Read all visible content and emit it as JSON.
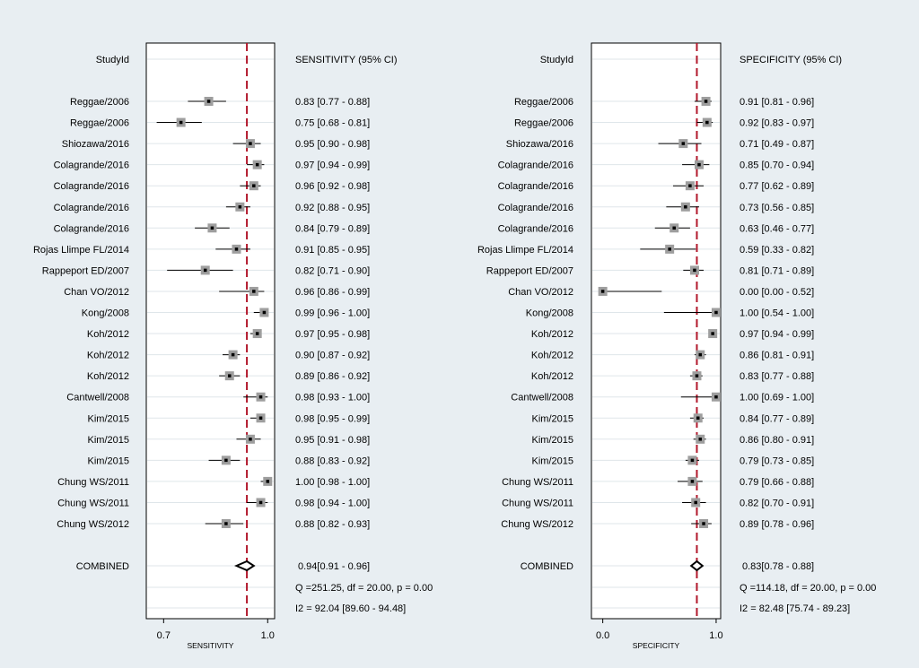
{
  "chart_data": [
    {
      "type": "forest",
      "id": "sensitivity",
      "study_header": "StudyId",
      "estimate_header": "SENSITIVITY (95% CI)",
      "xlabel": "SENSITIVITY",
      "xlim": [
        0.65,
        1.02
      ],
      "ticks": [
        {
          "value": 0.7,
          "label": "0.7"
        },
        {
          "value": 1.0,
          "label": "1.0"
        }
      ],
      "pooled_line": 0.94,
      "studies": [
        {
          "name": "Reggae/2006",
          "est": 0.83,
          "lo": 0.77,
          "hi": 0.88,
          "label": "0.83 [0.77 - 0.88]"
        },
        {
          "name": "Reggae/2006",
          "est": 0.75,
          "lo": 0.68,
          "hi": 0.81,
          "label": "0.75 [0.68 - 0.81]"
        },
        {
          "name": "Shiozawa/2016",
          "est": 0.95,
          "lo": 0.9,
          "hi": 0.98,
          "label": "0.95 [0.90 - 0.98]"
        },
        {
          "name": "Colagrande/2016",
          "est": 0.97,
          "lo": 0.94,
          "hi": 0.99,
          "label": "0.97 [0.94 - 0.99]"
        },
        {
          "name": "Colagrande/2016",
          "est": 0.96,
          "lo": 0.92,
          "hi": 0.98,
          "label": "0.96 [0.92 - 0.98]"
        },
        {
          "name": "Colagrande/2016",
          "est": 0.92,
          "lo": 0.88,
          "hi": 0.95,
          "label": "0.92 [0.88 - 0.95]"
        },
        {
          "name": "Colagrande/2016",
          "est": 0.84,
          "lo": 0.79,
          "hi": 0.89,
          "label": "0.84 [0.79 - 0.89]"
        },
        {
          "name": "Rojas Llimpe FL/2014",
          "est": 0.91,
          "lo": 0.85,
          "hi": 0.95,
          "label": "0.91 [0.85 - 0.95]"
        },
        {
          "name": "Rappeport ED/2007",
          "est": 0.82,
          "lo": 0.71,
          "hi": 0.9,
          "label": "0.82 [0.71 - 0.90]"
        },
        {
          "name": "Chan VO/2012",
          "est": 0.96,
          "lo": 0.86,
          "hi": 0.99,
          "label": "0.96 [0.86 - 0.99]"
        },
        {
          "name": "Kong/2008",
          "est": 0.99,
          "lo": 0.96,
          "hi": 1.0,
          "label": "0.99 [0.96 - 1.00]"
        },
        {
          "name": "Koh/2012",
          "est": 0.97,
          "lo": 0.95,
          "hi": 0.98,
          "label": "0.97 [0.95 - 0.98]"
        },
        {
          "name": "Koh/2012",
          "est": 0.9,
          "lo": 0.87,
          "hi": 0.92,
          "label": "0.90 [0.87 - 0.92]"
        },
        {
          "name": "Koh/2012",
          "est": 0.89,
          "lo": 0.86,
          "hi": 0.92,
          "label": "0.89 [0.86 - 0.92]"
        },
        {
          "name": "Cantwell/2008",
          "est": 0.98,
          "lo": 0.93,
          "hi": 1.0,
          "label": "0.98 [0.93 - 1.00]"
        },
        {
          "name": "Kim/2015",
          "est": 0.98,
          "lo": 0.95,
          "hi": 0.99,
          "label": "0.98 [0.95 - 0.99]"
        },
        {
          "name": "Kim/2015",
          "est": 0.95,
          "lo": 0.91,
          "hi": 0.98,
          "label": "0.95 [0.91 - 0.98]"
        },
        {
          "name": "Kim/2015",
          "est": 0.88,
          "lo": 0.83,
          "hi": 0.92,
          "label": "0.88 [0.83 - 0.92]"
        },
        {
          "name": "Chung WS/2011",
          "est": 1.0,
          "lo": 0.98,
          "hi": 1.0,
          "label": "1.00 [0.98 - 1.00]"
        },
        {
          "name": "Chung WS/2011",
          "est": 0.98,
          "lo": 0.94,
          "hi": 1.0,
          "label": "0.98 [0.94 - 1.00]"
        },
        {
          "name": "Chung WS/2012",
          "est": 0.88,
          "lo": 0.82,
          "hi": 0.93,
          "label": "0.88 [0.82 - 0.93]"
        }
      ],
      "combined": {
        "name": "COMBINED",
        "est": 0.94,
        "lo": 0.91,
        "hi": 0.96,
        "label": "0.94[0.91 - 0.96]"
      },
      "heterogeneity_q": "Q =251.25, df = 20.00, p =  0.00",
      "heterogeneity_i2": "I2 = 92.04 [89.60 - 94.48]"
    },
    {
      "type": "forest",
      "id": "specificity",
      "study_header": "StudyId",
      "estimate_header": "SPECIFICITY (95% CI)",
      "xlabel": "SPECIFICITY",
      "xlim": [
        -0.1,
        1.04
      ],
      "ticks": [
        {
          "value": 0.0,
          "label": "0.0"
        },
        {
          "value": 1.0,
          "label": "1.0"
        }
      ],
      "pooled_line": 0.83,
      "studies": [
        {
          "name": "Reggae/2006",
          "est": 0.91,
          "lo": 0.81,
          "hi": 0.96,
          "label": "0.91 [0.81 - 0.96]"
        },
        {
          "name": "Reggae/2006",
          "est": 0.92,
          "lo": 0.83,
          "hi": 0.97,
          "label": "0.92 [0.83 - 0.97]"
        },
        {
          "name": "Shiozawa/2016",
          "est": 0.71,
          "lo": 0.49,
          "hi": 0.87,
          "label": "0.71 [0.49 - 0.87]"
        },
        {
          "name": "Colagrande/2016",
          "est": 0.85,
          "lo": 0.7,
          "hi": 0.94,
          "label": "0.85 [0.70 - 0.94]"
        },
        {
          "name": "Colagrande/2016",
          "est": 0.77,
          "lo": 0.62,
          "hi": 0.89,
          "label": "0.77 [0.62 - 0.89]"
        },
        {
          "name": "Colagrande/2016",
          "est": 0.73,
          "lo": 0.56,
          "hi": 0.85,
          "label": "0.73 [0.56 - 0.85]"
        },
        {
          "name": "Colagrande/2016",
          "est": 0.63,
          "lo": 0.46,
          "hi": 0.77,
          "label": "0.63 [0.46 - 0.77]"
        },
        {
          "name": "Rojas Llimpe FL/2014",
          "est": 0.59,
          "lo": 0.33,
          "hi": 0.82,
          "label": "0.59 [0.33 - 0.82]"
        },
        {
          "name": "Rappeport ED/2007",
          "est": 0.81,
          "lo": 0.71,
          "hi": 0.89,
          "label": "0.81 [0.71 - 0.89]"
        },
        {
          "name": "Chan VO/2012",
          "est": 0.0,
          "lo": 0.0,
          "hi": 0.52,
          "label": "0.00 [0.00 - 0.52]"
        },
        {
          "name": "Kong/2008",
          "est": 1.0,
          "lo": 0.54,
          "hi": 1.0,
          "label": "1.00 [0.54 - 1.00]"
        },
        {
          "name": "Koh/2012",
          "est": 0.97,
          "lo": 0.94,
          "hi": 0.99,
          "label": "0.97 [0.94 - 0.99]"
        },
        {
          "name": "Koh/2012",
          "est": 0.86,
          "lo": 0.81,
          "hi": 0.91,
          "label": "0.86 [0.81 - 0.91]"
        },
        {
          "name": "Koh/2012",
          "est": 0.83,
          "lo": 0.77,
          "hi": 0.88,
          "label": "0.83 [0.77 - 0.88]"
        },
        {
          "name": "Cantwell/2008",
          "est": 1.0,
          "lo": 0.69,
          "hi": 1.0,
          "label": "1.00 [0.69 - 1.00]"
        },
        {
          "name": "Kim/2015",
          "est": 0.84,
          "lo": 0.77,
          "hi": 0.89,
          "label": "0.84 [0.77 - 0.89]"
        },
        {
          "name": "Kim/2015",
          "est": 0.86,
          "lo": 0.8,
          "hi": 0.91,
          "label": "0.86 [0.80 - 0.91]"
        },
        {
          "name": "Kim/2015",
          "est": 0.79,
          "lo": 0.73,
          "hi": 0.85,
          "label": "0.79 [0.73 - 0.85]"
        },
        {
          "name": "Chung WS/2011",
          "est": 0.79,
          "lo": 0.66,
          "hi": 0.88,
          "label": "0.79 [0.66 - 0.88]"
        },
        {
          "name": "Chung WS/2011",
          "est": 0.82,
          "lo": 0.7,
          "hi": 0.91,
          "label": "0.82 [0.70 - 0.91]"
        },
        {
          "name": "Chung WS/2012",
          "est": 0.89,
          "lo": 0.78,
          "hi": 0.96,
          "label": "0.89 [0.78 - 0.96]"
        }
      ],
      "combined": {
        "name": "COMBINED",
        "est": 0.83,
        "lo": 0.78,
        "hi": 0.88,
        "label": "0.83[0.78 - 0.88]"
      },
      "heterogeneity_q": "Q =114.18, df = 20.00, p =  0.00",
      "heterogeneity_i2": "I2 = 82.48 [75.74 - 89.23]"
    }
  ],
  "colors": {
    "background": "#e8eef2",
    "plot_region": "#ffffff",
    "gridline": "#dfe6ea",
    "pooled_line": "#b2182b",
    "weight_box": "#9e9e9e",
    "point": "#000000"
  }
}
